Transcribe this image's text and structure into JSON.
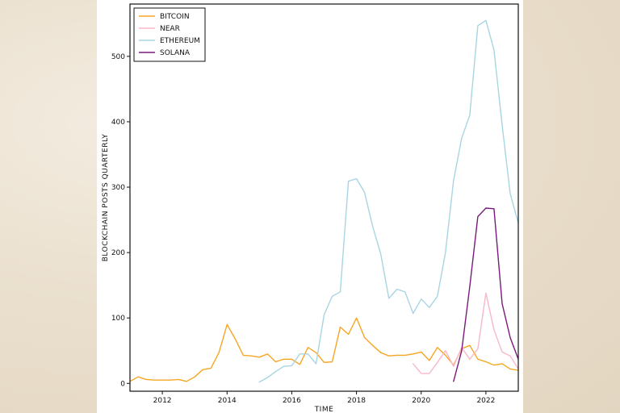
{
  "chart_data": {
    "type": "line",
    "xlabel": "TIME",
    "ylabel": "BLOCKCHAIN POSTS QUARTERLY",
    "xlim": [
      2011.0,
      2023.0
    ],
    "ylim": [
      -12,
      580
    ],
    "x_ticks": [
      2012,
      2014,
      2016,
      2018,
      2020,
      2022
    ],
    "y_ticks": [
      0,
      100,
      200,
      300,
      400,
      500
    ],
    "legend_position": "top-left",
    "grid": false,
    "series": [
      {
        "name": "BITCOIN",
        "color": "#f5a623",
        "points": [
          [
            2011.0,
            3
          ],
          [
            2011.25,
            10
          ],
          [
            2011.5,
            6
          ],
          [
            2011.75,
            5
          ],
          [
            2012.0,
            5
          ],
          [
            2012.25,
            5
          ],
          [
            2012.5,
            6
          ],
          [
            2012.75,
            3
          ],
          [
            2013.0,
            10
          ],
          [
            2013.25,
            21
          ],
          [
            2013.5,
            23
          ],
          [
            2013.75,
            47
          ],
          [
            2014.0,
            90
          ],
          [
            2014.25,
            68
          ],
          [
            2014.5,
            43
          ],
          [
            2014.75,
            42
          ],
          [
            2015.0,
            40
          ],
          [
            2015.25,
            45
          ],
          [
            2015.5,
            33
          ],
          [
            2015.75,
            37
          ],
          [
            2016.0,
            37
          ],
          [
            2016.25,
            29
          ],
          [
            2016.5,
            55
          ],
          [
            2016.75,
            47
          ],
          [
            2017.0,
            32
          ],
          [
            2017.25,
            33
          ],
          [
            2017.5,
            86
          ],
          [
            2017.75,
            75
          ],
          [
            2018.0,
            100
          ],
          [
            2018.25,
            70
          ],
          [
            2018.5,
            58
          ],
          [
            2018.75,
            47
          ],
          [
            2019.0,
            42
          ],
          [
            2019.25,
            43
          ],
          [
            2019.5,
            43
          ],
          [
            2019.75,
            45
          ],
          [
            2020.0,
            48
          ],
          [
            2020.25,
            35
          ],
          [
            2020.5,
            55
          ],
          [
            2020.75,
            43
          ],
          [
            2021.0,
            28
          ],
          [
            2021.25,
            53
          ],
          [
            2021.5,
            58
          ],
          [
            2021.75,
            37
          ],
          [
            2022.0,
            33
          ],
          [
            2022.25,
            28
          ],
          [
            2022.5,
            30
          ],
          [
            2022.75,
            22
          ],
          [
            2023.0,
            20
          ],
          [
            2023.25,
            24
          ],
          [
            2023.5,
            26
          ]
        ]
      },
      {
        "name": "NEAR",
        "color": "#f7b8c8",
        "points": [
          [
            2019.75,
            30
          ],
          [
            2020.0,
            15
          ],
          [
            2020.25,
            15
          ],
          [
            2020.5,
            32
          ],
          [
            2020.75,
            50
          ],
          [
            2021.0,
            26
          ],
          [
            2021.25,
            55
          ],
          [
            2021.5,
            37
          ],
          [
            2021.75,
            53
          ],
          [
            2022.0,
            138
          ],
          [
            2022.25,
            82
          ],
          [
            2022.5,
            48
          ],
          [
            2022.75,
            42
          ],
          [
            2023.0,
            22
          ],
          [
            2023.25,
            17
          ]
        ]
      },
      {
        "name": "ETHEREUM",
        "color": "#a8d5e2",
        "points": [
          [
            2015.0,
            2
          ],
          [
            2015.25,
            9
          ],
          [
            2015.5,
            18
          ],
          [
            2015.75,
            26
          ],
          [
            2016.0,
            27
          ],
          [
            2016.25,
            45
          ],
          [
            2016.5,
            45
          ],
          [
            2016.75,
            30
          ],
          [
            2017.0,
            105
          ],
          [
            2017.25,
            133
          ],
          [
            2017.5,
            140
          ],
          [
            2017.75,
            309
          ],
          [
            2018.0,
            313
          ],
          [
            2018.25,
            292
          ],
          [
            2018.5,
            240
          ],
          [
            2018.75,
            198
          ],
          [
            2019.0,
            130
          ],
          [
            2019.25,
            144
          ],
          [
            2019.5,
            140
          ],
          [
            2019.75,
            107
          ],
          [
            2020.0,
            129
          ],
          [
            2020.25,
            116
          ],
          [
            2020.5,
            133
          ],
          [
            2020.75,
            200
          ],
          [
            2021.0,
            310
          ],
          [
            2021.25,
            375
          ],
          [
            2021.5,
            410
          ],
          [
            2021.75,
            547
          ],
          [
            2022.0,
            555
          ],
          [
            2022.25,
            510
          ],
          [
            2022.5,
            395
          ],
          [
            2022.75,
            290
          ],
          [
            2023.0,
            245
          ]
        ]
      },
      {
        "name": "SOLANA",
        "color": "#7a1a7a",
        "points": [
          [
            2021.0,
            3
          ],
          [
            2021.25,
            50
          ],
          [
            2021.5,
            148
          ],
          [
            2021.75,
            255
          ],
          [
            2022.0,
            268
          ],
          [
            2022.25,
            267
          ],
          [
            2022.5,
            122
          ],
          [
            2022.75,
            70
          ],
          [
            2023.0,
            37
          ]
        ]
      }
    ]
  }
}
